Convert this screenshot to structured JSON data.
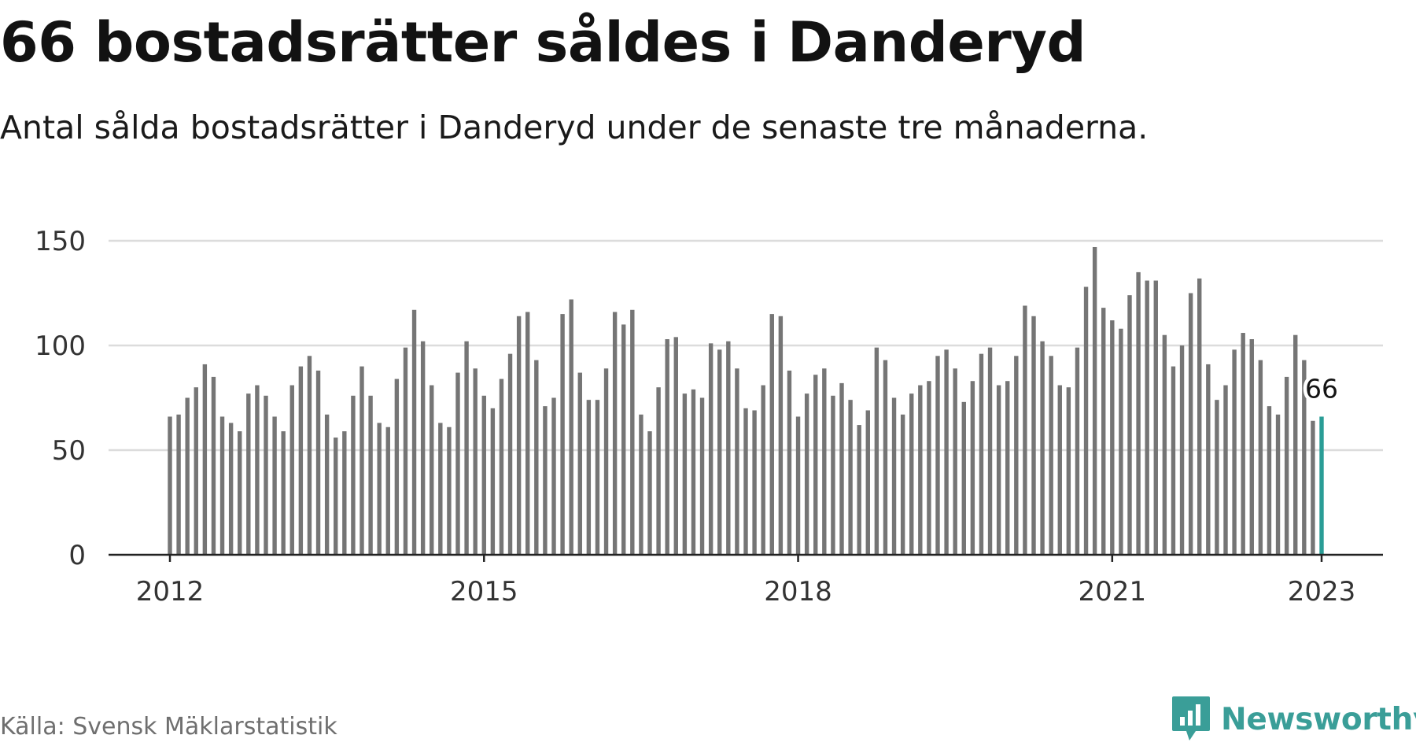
{
  "title": "66 bostadsrätter såldes i Danderyd",
  "subtitle": "Antal sålda bostadsrätter i Danderyd under de senaste tre månaderna.",
  "source": "Källa: Svensk Mäklarstatistik",
  "brand": {
    "name": "Newsworthy",
    "icon": "newsworthy-logo-icon"
  },
  "colors": {
    "bar": "#757575",
    "highlight": "#2a9d96",
    "grid": "#dcdcdc",
    "axis": "#222222",
    "brand": "#3a9e98"
  },
  "chart_data": {
    "type": "bar",
    "title": "66 bostadsrätter såldes i Danderyd",
    "subtitle": "Antal sålda bostadsrätter i Danderyd under de senaste tre månaderna.",
    "x_start": "2012-01",
    "x_step": "1 month",
    "x_end": "2023-01",
    "x_ticks": [
      "2012",
      "2015",
      "2018",
      "2021",
      "2023"
    ],
    "y_ticks": [
      0,
      50,
      100,
      150
    ],
    "ylim": [
      0,
      150
    ],
    "grid": true,
    "highlight_last": true,
    "annotation": {
      "label": "66",
      "value": 66,
      "x": "2023-01"
    },
    "values": [
      66,
      67,
      75,
      80,
      91,
      85,
      66,
      63,
      59,
      77,
      81,
      76,
      66,
      59,
      81,
      90,
      95,
      88,
      67,
      56,
      59,
      76,
      90,
      76,
      63,
      61,
      84,
      99,
      117,
      102,
      81,
      63,
      61,
      87,
      102,
      89,
      76,
      70,
      84,
      96,
      114,
      116,
      93,
      71,
      75,
      115,
      122,
      87,
      74,
      74,
      89,
      116,
      110,
      117,
      67,
      59,
      80,
      103,
      104,
      77,
      79,
      75,
      101,
      98,
      102,
      89,
      70,
      69,
      81,
      115,
      114,
      88,
      66,
      77,
      86,
      89,
      76,
      82,
      74,
      62,
      69,
      99,
      93,
      75,
      67,
      77,
      81,
      83,
      95,
      98,
      89,
      73,
      83,
      96,
      99,
      81,
      83,
      95,
      119,
      114,
      102,
      95,
      81,
      80,
      99,
      128,
      147,
      118,
      112,
      108,
      124,
      135,
      131,
      131,
      105,
      90,
      100,
      125,
      132,
      91,
      74,
      81,
      98,
      106,
      103,
      93,
      71,
      67,
      85,
      105,
      93,
      64,
      66
    ]
  }
}
